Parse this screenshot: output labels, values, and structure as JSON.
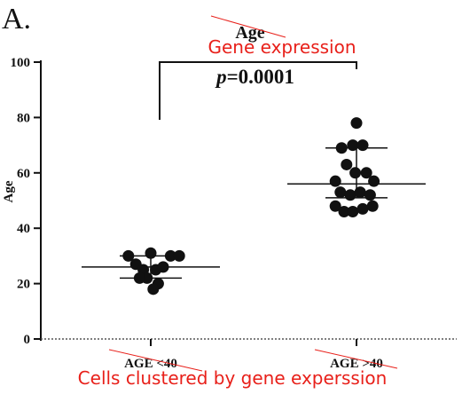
{
  "panel_label": "A.",
  "title": "Age",
  "overlay_title": "Gene expression",
  "overlay_xlabel": "Cells clustered by gene experssion",
  "annotation": {
    "p_symbol": "p",
    "p_value": "=0.0001"
  },
  "chart_data": {
    "type": "scatter",
    "title": "Age",
    "ylabel": "Age",
    "xlabel": "",
    "ylim": [
      0,
      100
    ],
    "yticks": [
      0,
      20,
      40,
      60,
      80,
      100
    ],
    "categories": [
      "AGE <40",
      "AGE >40"
    ],
    "series": [
      {
        "category": "AGE <40",
        "points": [
          {
            "dx": -0.18,
            "y": 30
          },
          {
            "dx": -0.12,
            "y": 27
          },
          {
            "dx": -0.06,
            "y": 25
          },
          {
            "dx": 0.0,
            "y": 31
          },
          {
            "dx": 0.04,
            "y": 25
          },
          {
            "dx": 0.1,
            "y": 26
          },
          {
            "dx": 0.16,
            "y": 30
          },
          {
            "dx": 0.23,
            "y": 30
          },
          {
            "dx": -0.03,
            "y": 22
          },
          {
            "dx": 0.06,
            "y": 20
          },
          {
            "dx": 0.02,
            "y": 18
          },
          {
            "dx": -0.09,
            "y": 22
          }
        ],
        "mean": 26,
        "sd_upper": 30,
        "sd_lower": 22
      },
      {
        "category": "AGE >40",
        "points": [
          {
            "dx": 0.0,
            "y": 78
          },
          {
            "dx": -0.12,
            "y": 69
          },
          {
            "dx": -0.03,
            "y": 70
          },
          {
            "dx": 0.05,
            "y": 70
          },
          {
            "dx": -0.08,
            "y": 63
          },
          {
            "dx": -0.01,
            "y": 60
          },
          {
            "dx": 0.08,
            "y": 60
          },
          {
            "dx": -0.17,
            "y": 57
          },
          {
            "dx": 0.14,
            "y": 57
          },
          {
            "dx": -0.13,
            "y": 53
          },
          {
            "dx": -0.05,
            "y": 52
          },
          {
            "dx": 0.03,
            "y": 53
          },
          {
            "dx": 0.11,
            "y": 52
          },
          {
            "dx": -0.17,
            "y": 48
          },
          {
            "dx": -0.1,
            "y": 46
          },
          {
            "dx": -0.03,
            "y": 46
          },
          {
            "dx": 0.05,
            "y": 47
          },
          {
            "dx": 0.13,
            "y": 48
          }
        ],
        "mean": 56,
        "sd_upper": 69,
        "sd_lower": 51
      }
    ],
    "reference_line": 0,
    "bracket": {
      "from": "AGE <40",
      "to": "AGE >40",
      "y": 100
    }
  },
  "style": {
    "marker_color": "#111111",
    "overlay_color": "#e8201a",
    "line_color": "#111111"
  }
}
